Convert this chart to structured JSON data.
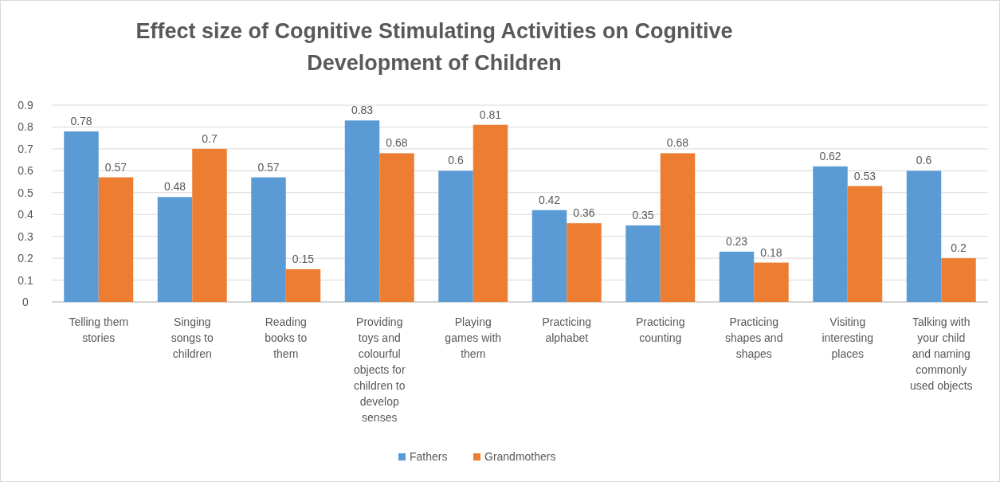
{
  "chart_data": {
    "type": "bar",
    "title": "Effect size of Cognitive Stimulating Activities on Cognitive Development of Children",
    "categories": [
      "Telling them stories",
      "Singing songs to children",
      "Reading books to them",
      "Providing toys and colourful objects for children to develop senses",
      "Playing games with them",
      "Practicing alphabet",
      "Practicing counting",
      "Practicing shapes and shapes",
      "Visiting interesting places",
      "Talking with your child and naming commonly used objects"
    ],
    "series": [
      {
        "name": "Fathers",
        "color": "#5b9bd5",
        "values": [
          0.78,
          0.48,
          0.57,
          0.83,
          0.6,
          0.42,
          0.35,
          0.23,
          0.62,
          0.6
        ]
      },
      {
        "name": "Grandmothers",
        "color": "#ed7d31",
        "values": [
          0.57,
          0.7,
          0.15,
          0.68,
          0.81,
          0.36,
          0.68,
          0.18,
          0.53,
          0.2
        ]
      }
    ],
    "ylim": [
      0,
      0.9
    ],
    "yticks": [
      0,
      0.1,
      0.2,
      0.3,
      0.4,
      0.5,
      0.6,
      0.7,
      0.8,
      0.9
    ],
    "grid": "y",
    "legend": "bottom",
    "data_labels": true
  }
}
